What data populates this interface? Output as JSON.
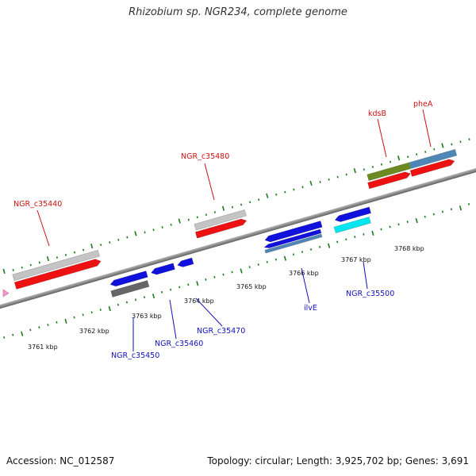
{
  "title": "Rhizobium sp. NGR234, complete genome",
  "footer": {
    "accession": "Accession: NC_012587",
    "summary": "Topology: circular; Length: 3,925,702 bp; Genes: 3,691"
  },
  "scale": {
    "ticks": [
      "3761 kbp",
      "3762 kbp",
      "3763 kbp",
      "3764 kbp",
      "3765 kbp",
      "3766 kbp",
      "3767 kbp",
      "3768 kbp"
    ]
  },
  "labels": {
    "forward": [
      "NGR_c35440",
      "NGR_c35480",
      "kdsB",
      "pheA"
    ],
    "reverse": [
      "NGR_c35450",
      "NGR_c35460",
      "NGR_c35470",
      "ilvE",
      "NGR_c35500"
    ]
  },
  "colors": {
    "backbone": "#8c8c8c",
    "cds": "#ee1111",
    "gene_grey": "#c4c4c4",
    "gene_blue": "#1111dd",
    "gene_olive": "#6b8a22",
    "gene_steel": "#4f86b8",
    "gene_cyan": "#00e5ee",
    "gene_dark": "#666666",
    "tick": "#1d7a1d",
    "marker": "#ee99cc"
  },
  "icons": {
    "origin_marker": "arrow-marker-icon"
  }
}
